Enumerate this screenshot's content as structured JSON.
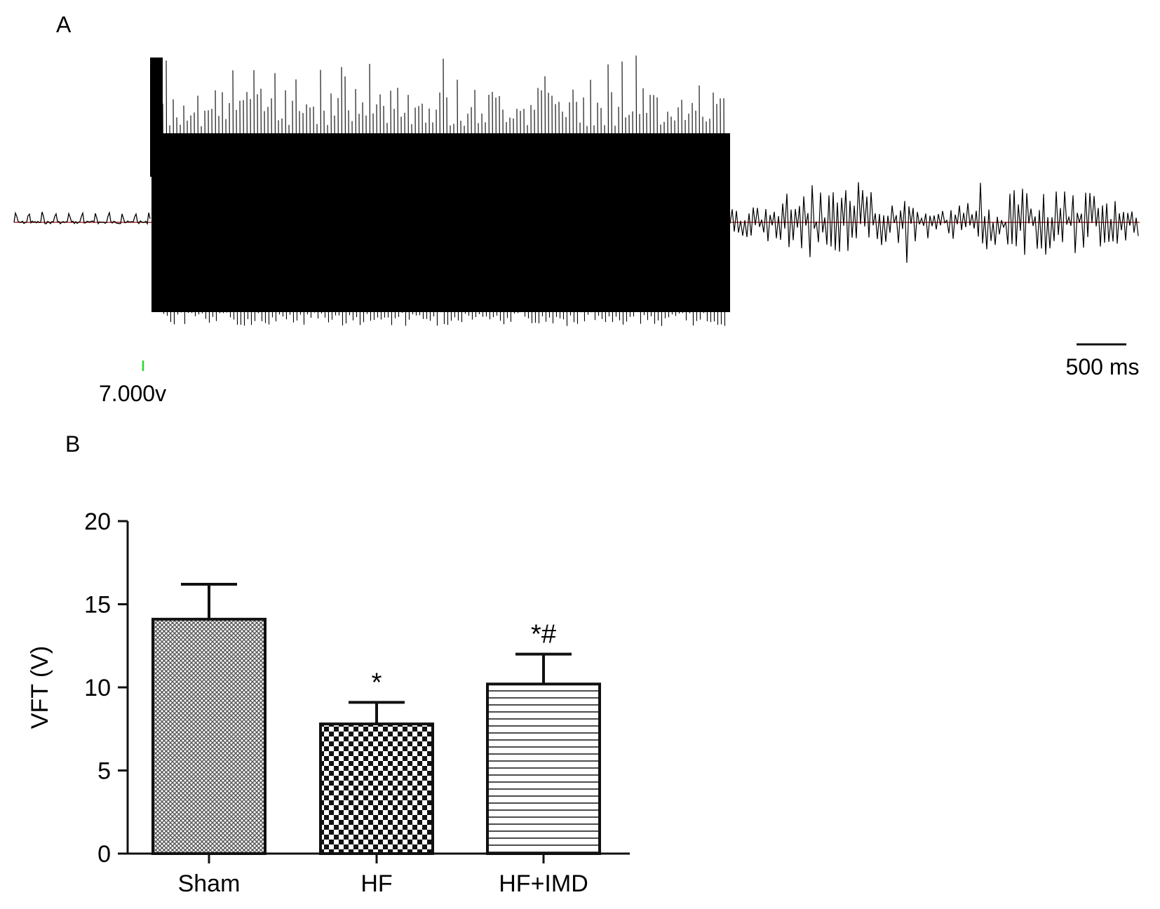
{
  "panel_a": {
    "label": "A",
    "stimulus_label": "7.000v",
    "scale_bar_label": "500 ms",
    "trace_color": "#000000",
    "baseline_color": "#b03030",
    "marker_color": "#22dd22"
  },
  "panel_b": {
    "label": "B"
  },
  "chart_data": {
    "type": "bar",
    "categories": [
      "Sham",
      "HF",
      "HF+IMD"
    ],
    "series": [
      {
        "values": [
          14.1,
          7.8,
          10.2
        ],
        "errors": [
          2.1,
          1.3,
          1.8
        ]
      }
    ],
    "annotations": [
      "",
      "*",
      "*#"
    ],
    "patterns": [
      "fine-crosshatch",
      "checkerboard",
      "horizontal-lines"
    ],
    "title": "",
    "xlabel": "",
    "ylabel": "VFT (V)",
    "ylim": [
      0,
      20
    ],
    "yticks": [
      0,
      5,
      10,
      15,
      20
    ],
    "ytick_labels": [
      "0",
      "5",
      "10",
      "15",
      "20"
    ],
    "grid": false,
    "legend": "none"
  }
}
